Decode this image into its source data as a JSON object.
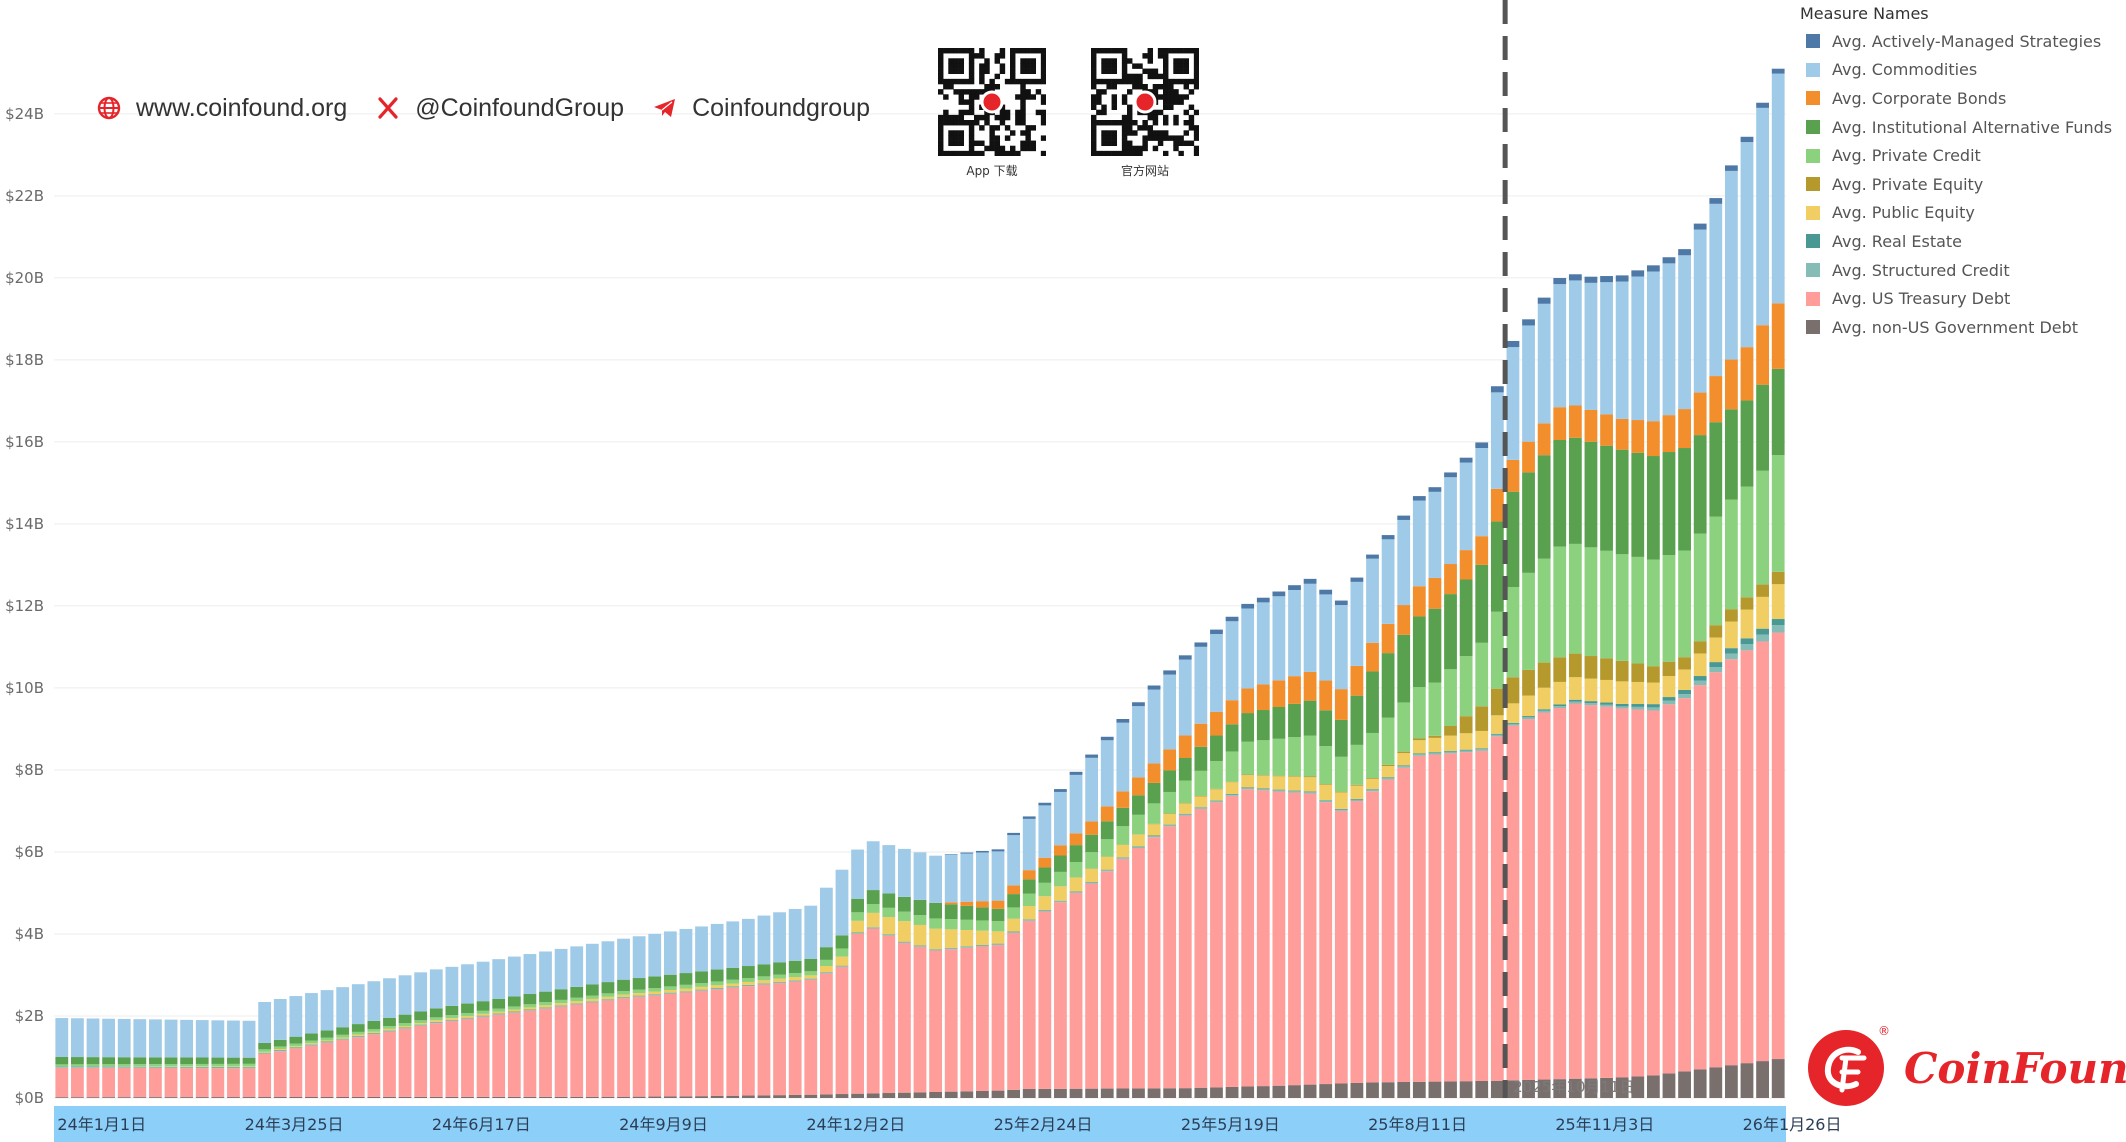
{
  "header": {
    "website": "www.coinfound.org",
    "twitter": "@CoinfoundGroup",
    "telegram": "Coinfoundgroup",
    "qr_codes": [
      {
        "caption": "App 下载",
        "icon": "qr-code-icon"
      },
      {
        "caption": "官方网站",
        "icon": "qr-code-icon"
      }
    ]
  },
  "legend": {
    "title": "Measure Names",
    "items": [
      {
        "label": "Avg. Actively-Managed Strategies",
        "color": "#4e79a7"
      },
      {
        "label": "Avg. Commodities",
        "color": "#a0cbe8"
      },
      {
        "label": "Avg. Corporate Bonds",
        "color": "#f28e2b"
      },
      {
        "label": "Avg. Institutional Alternative Funds",
        "color": "#59a14f"
      },
      {
        "label": "Avg. Private Credit",
        "color": "#8cd17d"
      },
      {
        "label": "Avg. Private Equity",
        "color": "#b6992d"
      },
      {
        "label": "Avg. Public Equity",
        "color": "#f1ce63"
      },
      {
        "label": "Avg. Real Estate",
        "color": "#499894"
      },
      {
        "label": "Avg. Structured Credit",
        "color": "#86bcb6"
      },
      {
        "label": "Avg. US Treasury Debt",
        "color": "#ff9d9a"
      },
      {
        "label": "Avg. non-US Government Debt",
        "color": "#79706e"
      }
    ]
  },
  "brand": {
    "name": "CoinFound",
    "registered": "®"
  },
  "colors": {
    "axis_band": "#8ccff8",
    "reference_line": "#555555"
  },
  "chart_data": {
    "type": "bar",
    "stacked": true,
    "title": "",
    "xlabel": "",
    "ylabel": "",
    "ylim": [
      0,
      25.8
    ],
    "y_ticks": [
      {
        "v": 0,
        "label": "$0B"
      },
      {
        "v": 2,
        "label": "$2B"
      },
      {
        "v": 4,
        "label": "$4B"
      },
      {
        "v": 6,
        "label": "$6B"
      },
      {
        "v": 8,
        "label": "$8B"
      },
      {
        "v": 10,
        "label": "$10B"
      },
      {
        "v": 12,
        "label": "$12B"
      },
      {
        "v": 14,
        "label": "$14B"
      },
      {
        "v": 16,
        "label": "$16B"
      },
      {
        "v": 18,
        "label": "$18B"
      },
      {
        "v": 20,
        "label": "$20B"
      },
      {
        "v": 22,
        "label": "$22B"
      },
      {
        "v": 24,
        "label": "$24B"
      }
    ],
    "x_ticks": [
      {
        "index": 0,
        "label": "24年1月1日"
      },
      {
        "index": 12,
        "label": "24年3月25日"
      },
      {
        "index": 24,
        "label": "24年6月17日"
      },
      {
        "index": 36,
        "label": "24年9月9日"
      },
      {
        "index": 48,
        "label": "24年12月2日"
      },
      {
        "index": 60,
        "label": "25年2月24日"
      },
      {
        "index": 72,
        "label": "25年5月19日"
      },
      {
        "index": 84,
        "label": "25年8月11日"
      },
      {
        "index": 96,
        "label": "25年11月3日"
      },
      {
        "index": 108,
        "label": "26年1月26日"
      }
    ],
    "reference_line": {
      "index": 92.5,
      "label": "2025年10月11日"
    },
    "n_bars": 111,
    "series_order_bottom_to_top": [
      "Avg. non-US Government Debt",
      "Avg. US Treasury Debt",
      "Avg. Structured Credit",
      "Avg. Real Estate",
      "Avg. Public Equity",
      "Avg. Private Equity",
      "Avg. Private Credit",
      "Avg. Institutional Alternative Funds",
      "Avg. Corporate Bonds",
      "Avg. Commodities",
      "Avg. Actively-Managed Strategies"
    ],
    "series_anchors": [
      {
        "name": "Avg. non-US Government Debt",
        "unit": "$B",
        "points": [
          [
            0,
            0.02
          ],
          [
            36,
            0.03
          ],
          [
            40,
            0.04
          ],
          [
            48,
            0.08
          ],
          [
            60,
            0.18
          ],
          [
            62,
            0.22
          ],
          [
            72,
            0.24
          ],
          [
            78,
            0.3
          ],
          [
            84,
            0.38
          ],
          [
            92,
            0.42
          ],
          [
            94,
            0.44
          ],
          [
            100,
            0.5
          ],
          [
            102,
            0.55
          ],
          [
            110,
            0.95
          ]
        ]
      },
      {
        "name": "Avg. US Treasury Debt",
        "unit": "$B",
        "points": [
          [
            0,
            0.72
          ],
          [
            12,
            0.7
          ],
          [
            13,
            1.05
          ],
          [
            24,
            1.8
          ],
          [
            36,
            2.4
          ],
          [
            48,
            2.8
          ],
          [
            50,
            3.1
          ],
          [
            51,
            3.9
          ],
          [
            52,
            4.02
          ],
          [
            54,
            3.65
          ],
          [
            56,
            3.45
          ],
          [
            60,
            3.55
          ],
          [
            62,
            4.1
          ],
          [
            66,
            5.0
          ],
          [
            68,
            5.6
          ],
          [
            72,
            6.65
          ],
          [
            76,
            7.25
          ],
          [
            80,
            7.1
          ],
          [
            82,
            6.65
          ],
          [
            84,
            7.1
          ],
          [
            87,
            7.95
          ],
          [
            91,
            8.05
          ],
          [
            92,
            8.4
          ],
          [
            93,
            8.65
          ],
          [
            95,
            8.95
          ],
          [
            97,
            9.15
          ],
          [
            99,
            9.05
          ],
          [
            102,
            8.9
          ],
          [
            104,
            9.1
          ],
          [
            107,
            9.9
          ],
          [
            110,
            10.4
          ]
        ]
      },
      {
        "name": "Avg. Structured Credit",
        "unit": "$B",
        "points": [
          [
            0,
            0.02
          ],
          [
            50,
            0.02
          ],
          [
            80,
            0.03
          ],
          [
            100,
            0.05
          ],
          [
            104,
            0.1
          ],
          [
            110,
            0.18
          ]
        ]
      },
      {
        "name": "Avg. Real Estate",
        "unit": "$B",
        "points": [
          [
            0,
            0.01
          ],
          [
            60,
            0.01
          ],
          [
            92,
            0.02
          ],
          [
            96,
            0.04
          ],
          [
            100,
            0.06
          ],
          [
            104,
            0.1
          ],
          [
            108,
            0.14
          ],
          [
            110,
            0.15
          ]
        ]
      },
      {
        "name": "Avg. Public Equity",
        "unit": "$B",
        "points": [
          [
            0,
            0.0
          ],
          [
            48,
            0.08
          ],
          [
            50,
            0.22
          ],
          [
            52,
            0.35
          ],
          [
            54,
            0.5
          ],
          [
            56,
            0.5
          ],
          [
            60,
            0.3
          ],
          [
            64,
            0.35
          ],
          [
            68,
            0.3
          ],
          [
            72,
            0.25
          ],
          [
            80,
            0.35
          ],
          [
            82,
            0.4
          ],
          [
            84,
            0.25
          ],
          [
            88,
            0.35
          ],
          [
            92,
            0.45
          ],
          [
            96,
            0.55
          ],
          [
            100,
            0.55
          ],
          [
            104,
            0.5
          ],
          [
            106,
            0.6
          ],
          [
            108,
            0.7
          ],
          [
            110,
            0.85
          ]
        ]
      },
      {
        "name": "Avg. Private Equity",
        "unit": "$B",
        "points": [
          [
            0,
            0.0
          ],
          [
            60,
            0.0
          ],
          [
            84,
            0.02
          ],
          [
            88,
            0.05
          ],
          [
            91,
            0.6
          ],
          [
            92,
            0.65
          ],
          [
            96,
            0.6
          ],
          [
            100,
            0.5
          ],
          [
            104,
            0.3
          ],
          [
            108,
            0.3
          ],
          [
            110,
            0.3
          ]
        ]
      },
      {
        "name": "Avg. Private Credit",
        "unit": "$B",
        "points": [
          [
            0,
            0.05
          ],
          [
            24,
            0.07
          ],
          [
            48,
            0.1
          ],
          [
            50,
            0.2
          ],
          [
            56,
            0.25
          ],
          [
            60,
            0.25
          ],
          [
            64,
            0.35
          ],
          [
            68,
            0.45
          ],
          [
            72,
            0.55
          ],
          [
            76,
            0.8
          ],
          [
            80,
            1.0
          ],
          [
            82,
            0.85
          ],
          [
            84,
            1.1
          ],
          [
            88,
            1.3
          ],
          [
            91,
            1.55
          ],
          [
            93,
            2.2
          ],
          [
            96,
            2.7
          ],
          [
            100,
            2.6
          ],
          [
            104,
            2.6
          ],
          [
            108,
            2.7
          ],
          [
            110,
            2.85
          ]
        ]
      },
      {
        "name": "Avg. Institutional Alternative Funds",
        "unit": "$B",
        "points": [
          [
            0,
            0.18
          ],
          [
            12,
            0.15
          ],
          [
            24,
            0.22
          ],
          [
            36,
            0.28
          ],
          [
            48,
            0.3
          ],
          [
            50,
            0.32
          ],
          [
            56,
            0.38
          ],
          [
            60,
            0.3
          ],
          [
            64,
            0.4
          ],
          [
            68,
            0.45
          ],
          [
            72,
            0.55
          ],
          [
            76,
            0.7
          ],
          [
            80,
            0.85
          ],
          [
            82,
            0.9
          ],
          [
            84,
            1.5
          ],
          [
            88,
            1.8
          ],
          [
            91,
            1.9
          ],
          [
            92,
            2.2
          ],
          [
            94,
            2.45
          ],
          [
            96,
            2.6
          ],
          [
            100,
            2.55
          ],
          [
            104,
            2.5
          ],
          [
            108,
            2.1
          ],
          [
            110,
            2.1
          ]
        ]
      },
      {
        "name": "Avg. Corporate Bonds",
        "unit": "$B",
        "points": [
          [
            0,
            0.0
          ],
          [
            48,
            0.0
          ],
          [
            56,
            0.0
          ],
          [
            60,
            0.2
          ],
          [
            64,
            0.25
          ],
          [
            68,
            0.4
          ],
          [
            72,
            0.55
          ],
          [
            76,
            0.6
          ],
          [
            80,
            0.7
          ],
          [
            82,
            0.75
          ],
          [
            84,
            0.7
          ],
          [
            88,
            0.75
          ],
          [
            91,
            0.7
          ],
          [
            92,
            0.8
          ],
          [
            94,
            0.75
          ],
          [
            96,
            0.8
          ],
          [
            100,
            0.75
          ],
          [
            104,
            0.95
          ],
          [
            108,
            1.3
          ],
          [
            110,
            1.6
          ]
        ]
      },
      {
        "name": "Avg. Commodities",
        "unit": "$B",
        "points": [
          [
            0,
            0.95
          ],
          [
            12,
            0.9
          ],
          [
            13,
            1.0
          ],
          [
            24,
            0.95
          ],
          [
            36,
            1.0
          ],
          [
            44,
            1.15
          ],
          [
            48,
            1.3
          ],
          [
            50,
            1.6
          ],
          [
            51,
            1.2
          ],
          [
            56,
            1.15
          ],
          [
            60,
            1.2
          ],
          [
            64,
            1.3
          ],
          [
            66,
            1.55
          ],
          [
            70,
            1.8
          ],
          [
            72,
            1.85
          ],
          [
            76,
            1.95
          ],
          [
            78,
            2.05
          ],
          [
            80,
            2.15
          ],
          [
            82,
            2.05
          ],
          [
            84,
            2.05
          ],
          [
            88,
            2.1
          ],
          [
            91,
            2.15
          ],
          [
            92,
            2.35
          ],
          [
            93,
            2.75
          ],
          [
            96,
            3.0
          ],
          [
            98,
            3.1
          ],
          [
            100,
            3.35
          ],
          [
            102,
            3.65
          ],
          [
            104,
            3.75
          ],
          [
            106,
            4.2
          ],
          [
            108,
            5.0
          ],
          [
            110,
            5.6
          ]
        ]
      },
      {
        "name": "Avg. Actively-Managed Strategies",
        "unit": "$B",
        "points": [
          [
            0,
            0.0
          ],
          [
            48,
            0.0
          ],
          [
            56,
            0.0
          ],
          [
            60,
            0.05
          ],
          [
            70,
            0.1
          ],
          [
            80,
            0.12
          ],
          [
            84,
            0.1
          ],
          [
            90,
            0.12
          ],
          [
            92,
            0.15
          ],
          [
            96,
            0.15
          ],
          [
            104,
            0.15
          ],
          [
            110,
            0.12
          ]
        ]
      }
    ]
  }
}
